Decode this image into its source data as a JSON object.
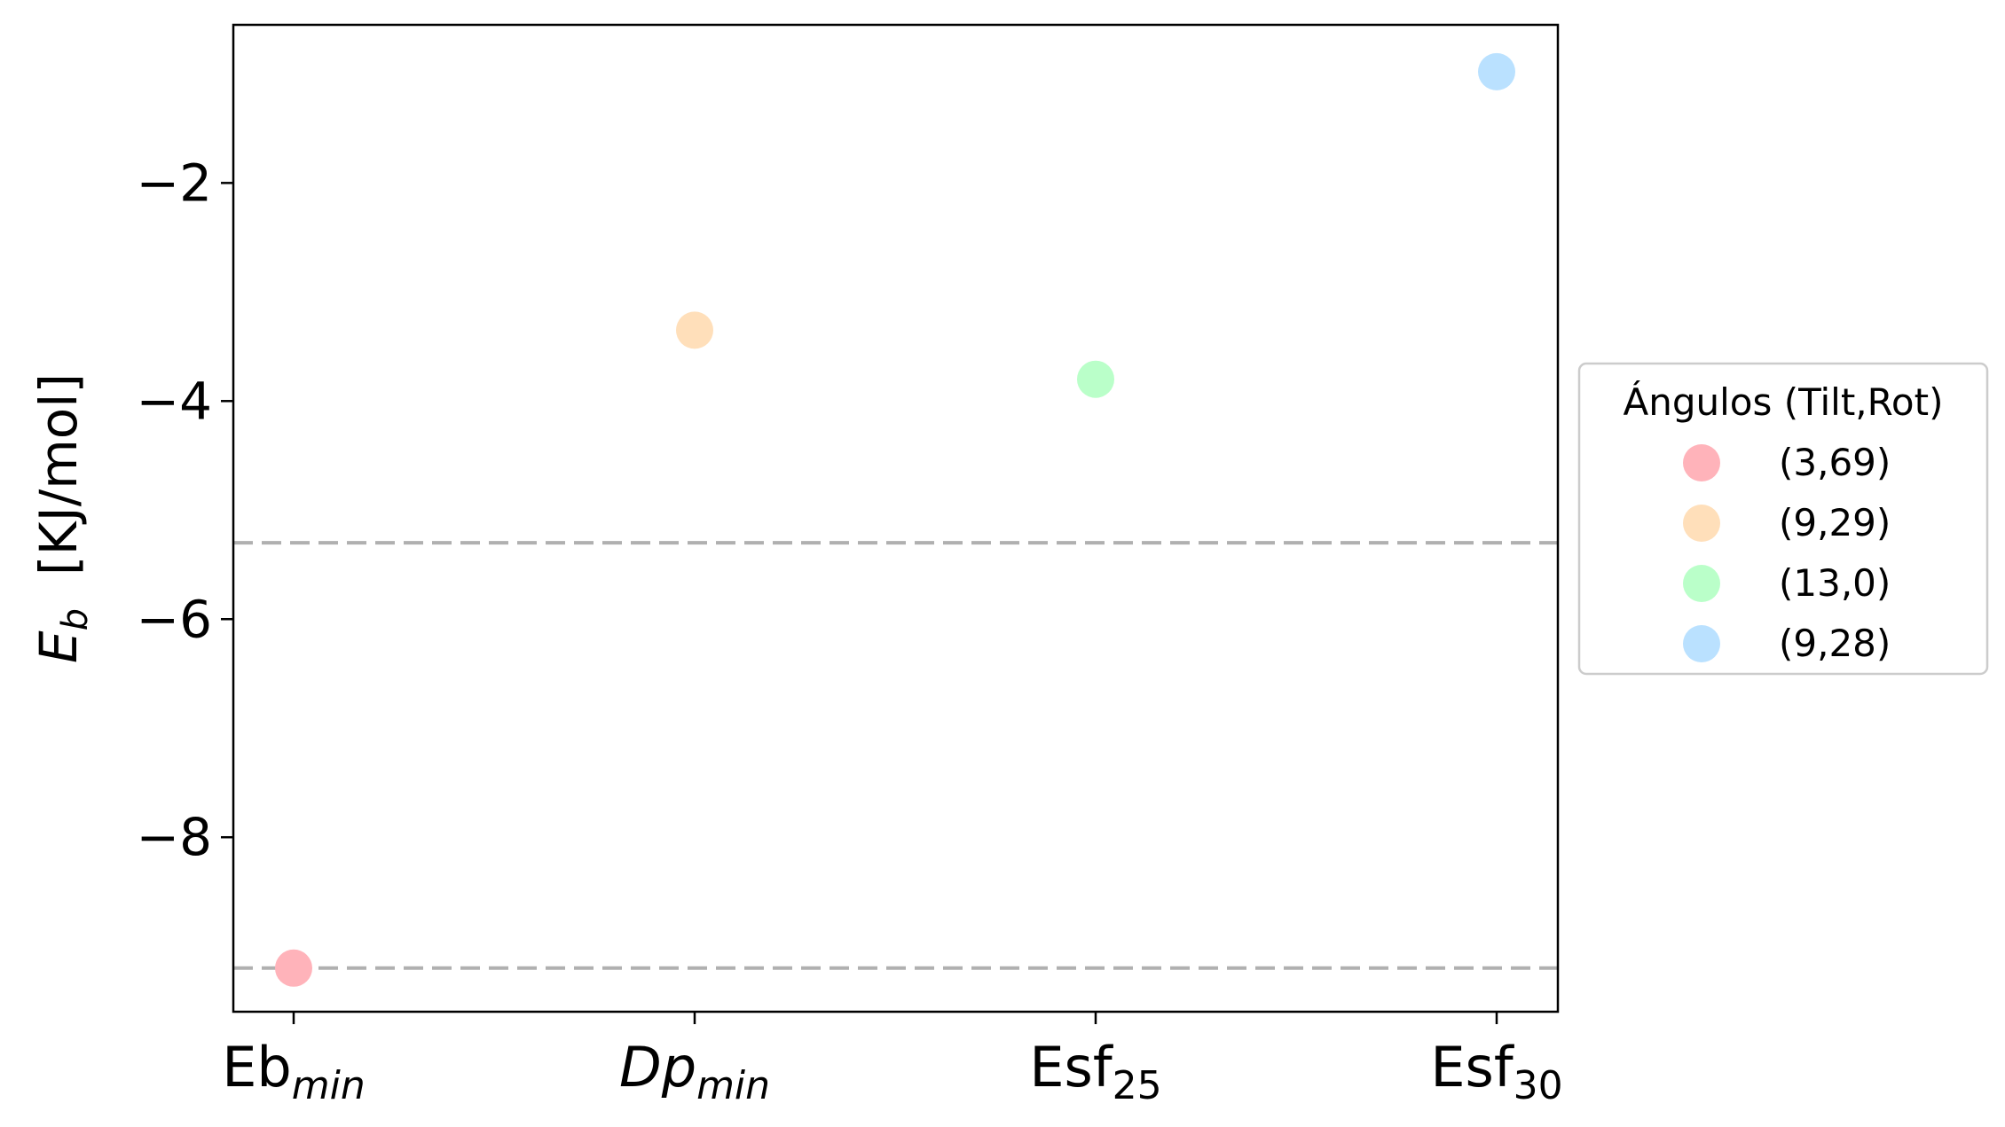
{
  "chart_data": {
    "type": "scatter",
    "ylabel": "E_b  [KJ/mol]",
    "ylabel_parts": {
      "symbol": "E",
      "subscript": "b",
      "unit": " [KJ/mol]"
    },
    "ylim": [
      -9.6,
      -0.55
    ],
    "yticks": [
      -2,
      -4,
      -6,
      -8
    ],
    "ytick_labels": [
      "−2",
      "−4",
      "−6",
      "−8"
    ],
    "categories": [
      {
        "base": "Eb",
        "sub": "min",
        "base_italic": false
      },
      {
        "base": "Dp",
        "sub": "min",
        "base_italic": true
      },
      {
        "base": "Esf",
        "sub": "25",
        "base_italic": false
      },
      {
        "base": "Esf",
        "sub": "30",
        "base_italic": false
      }
    ],
    "points": [
      {
        "category_index": 0,
        "y": -9.2,
        "color": "#ffb3ba",
        "label": "(3,69)"
      },
      {
        "category_index": 1,
        "y": -3.35,
        "color": "#ffdfba",
        "label": "(9,29)"
      },
      {
        "category_index": 2,
        "y": -3.8,
        "color": "#baffc9",
        "label": "(13,0)"
      },
      {
        "category_index": 3,
        "y": -0.98,
        "color": "#bae1ff",
        "label": "(9,28)"
      }
    ],
    "hlines": [
      {
        "y": -5.3,
        "color": "#b0b0b0",
        "style": "dashed"
      },
      {
        "y": -9.2,
        "color": "#b0b0b0",
        "style": "dashed"
      }
    ],
    "legend": {
      "title": "Ángulos (Tilt,Rot)",
      "placement": "outside-right"
    },
    "grid": false
  }
}
